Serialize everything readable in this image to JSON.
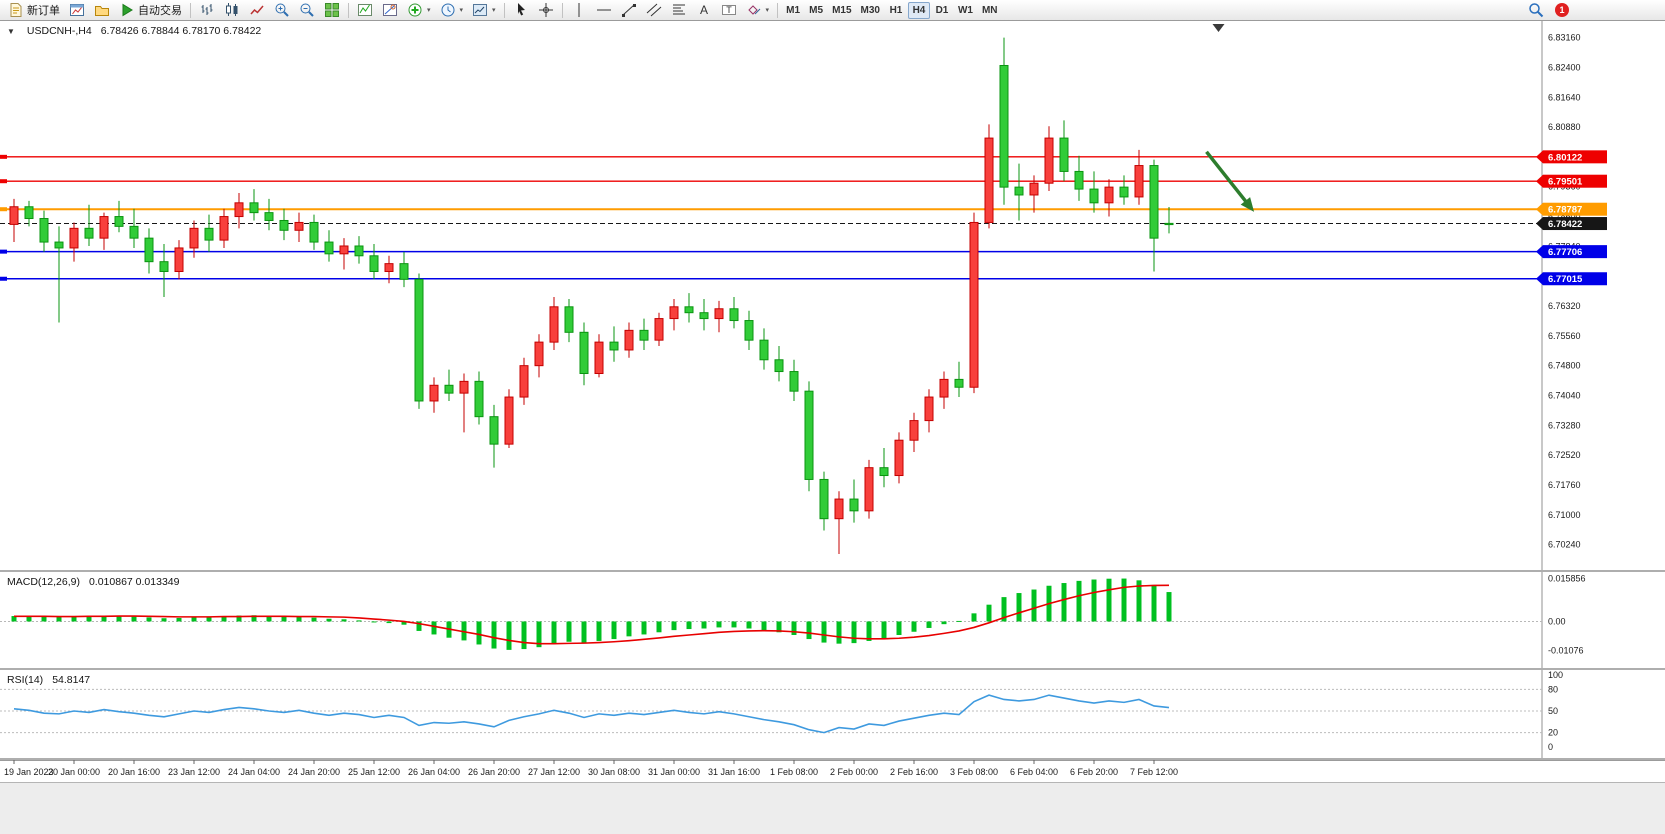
{
  "toolbar": {
    "buttons": [
      {
        "name": "new-order-button",
        "icon": "new-order-icon",
        "label": "新订单"
      },
      {
        "name": "charts-button",
        "icon": "chart-window-icon"
      },
      {
        "name": "profiles-button",
        "icon": "profiles-icon"
      },
      {
        "name": "auto-trading-button",
        "icon": "play-icon",
        "label": "自动交易"
      },
      {
        "sep": true
      },
      {
        "name": "bar-chart-button",
        "icon": "bars-icon"
      },
      {
        "name": "candle-chart-button",
        "icon": "candles-icon"
      },
      {
        "name": "line-chart-button",
        "icon": "line-icon"
      },
      {
        "name": "zoom-in-button",
        "icon": "zoom-in-icon"
      },
      {
        "name": "zoom-out-button",
        "icon": "zoom-out-icon"
      },
      {
        "name": "tile-windows-button",
        "icon": "tile-icon"
      },
      {
        "sep": true
      },
      {
        "name": "indicator-list-button",
        "icon": "indicator-list-icon"
      },
      {
        "name": "object-list-button",
        "icon": "object-list-icon"
      },
      {
        "name": "add-indicator-button",
        "icon": "add-indicator-icon",
        "caret": true
      },
      {
        "name": "period-button",
        "icon": "clock-icon",
        "caret": true
      },
      {
        "name": "template-button",
        "icon": "template-icon",
        "caret": true
      },
      {
        "sep": true
      },
      {
        "name": "cursor-button",
        "icon": "cursor-icon"
      },
      {
        "name": "crosshair-button",
        "icon": "crosshair-icon"
      },
      {
        "sep": true
      },
      {
        "name": "vertical-line-button",
        "icon": "vline-icon"
      },
      {
        "name": "horizontal-line-button",
        "icon": "hline-icon"
      },
      {
        "name": "trendline-button",
        "icon": "trendline-icon"
      },
      {
        "name": "channel-button",
        "icon": "channel-icon"
      },
      {
        "name": "fibonacci-button",
        "icon": "fibo-icon"
      },
      {
        "name": "text-button",
        "icon": "text-icon"
      },
      {
        "name": "label-button",
        "icon": "label-icon"
      },
      {
        "name": "shapes-button",
        "icon": "shapes-icon",
        "caret": true
      },
      {
        "sep": true
      }
    ],
    "timeframes": [
      "M1",
      "M5",
      "M15",
      "M30",
      "H1",
      "H4",
      "D1",
      "W1",
      "MN"
    ],
    "active_timeframe": "H4",
    "right_buttons": {
      "search_name": "search-button",
      "notification_count": "1"
    }
  },
  "chart": {
    "title_symbol": "USDCNH-,H4",
    "title_ohlc": "6.78426 6.78844 6.78170 6.78422"
  },
  "chart_data": {
    "type": "candlestick",
    "symbol": "USDCNH-",
    "timeframe": "H4",
    "ohlc_current": {
      "open": 6.78426,
      "high": 6.78844,
      "low": 6.7817,
      "close": 6.78422
    },
    "colors": {
      "up": "#f8403c",
      "up_border": "#c40000",
      "down": "#31cc38",
      "down_border": "#0a9410",
      "macd_hist": "#00c020",
      "macd_signal": "#e80000",
      "rsi": "#3e9adf",
      "line_red": "#ee0000",
      "line_orange": "#ff9c00",
      "line_blue": "#0000e8",
      "current": "#161616"
    },
    "y_axis": {
      "min": 6.7024,
      "max": 6.8316,
      "tick_step": 0.0076,
      "labels": [
        "6.83160",
        "6.82400",
        "6.81640",
        "6.80880",
        "6.80120",
        "6.79360",
        "6.78600",
        "6.77840",
        "6.77080",
        "6.76320",
        "6.75560",
        "6.74800",
        "6.74040",
        "6.73280",
        "6.72520",
        "6.71760",
        "6.71000",
        "6.70240"
      ]
    },
    "horizontal_lines": [
      {
        "price": 6.80122,
        "color": "#ee0000",
        "badge": "6.80122",
        "width": 1.3
      },
      {
        "price": 6.79501,
        "color": "#ee0000",
        "badge": "6.79501",
        "width": 1.3
      },
      {
        "price": 6.78787,
        "color": "#ff9c00",
        "badge": "6.78787",
        "width": 2
      },
      {
        "price": 6.77706,
        "color": "#0000e8",
        "badge": "6.77706",
        "width": 1.6
      },
      {
        "price": 6.77015,
        "color": "#0000e8",
        "badge": "6.77015",
        "width": 1.6
      }
    ],
    "current_price": {
      "price": 6.78422,
      "badge": "6.78422",
      "color": "#161616"
    },
    "candles": [
      [
        6.784,
        6.7905,
        6.7795,
        6.7885
      ],
      [
        6.7885,
        6.79,
        6.7835,
        6.7855
      ],
      [
        6.7855,
        6.7875,
        6.777,
        6.7795
      ],
      [
        6.7795,
        6.7835,
        6.759,
        6.778
      ],
      [
        6.778,
        6.7845,
        6.7745,
        6.783
      ],
      [
        6.783,
        6.789,
        6.7785,
        6.7805
      ],
      [
        6.7805,
        6.787,
        6.7775,
        6.786
      ],
      [
        6.786,
        6.79,
        6.782,
        6.7835
      ],
      [
        6.7835,
        6.788,
        6.778,
        6.7805
      ],
      [
        6.7805,
        6.783,
        6.7715,
        6.7745
      ],
      [
        6.7745,
        6.779,
        6.7655,
        6.772
      ],
      [
        6.772,
        6.78,
        6.77,
        6.778
      ],
      [
        6.778,
        6.785,
        6.7755,
        6.783
      ],
      [
        6.783,
        6.7865,
        6.777,
        6.78
      ],
      [
        6.78,
        6.788,
        6.778,
        6.786
      ],
      [
        6.786,
        6.792,
        6.783,
        6.7895
      ],
      [
        6.7895,
        6.793,
        6.785,
        6.787
      ],
      [
        6.787,
        6.7905,
        6.7825,
        6.785
      ],
      [
        6.785,
        6.788,
        6.78,
        6.7825
      ],
      [
        6.7825,
        6.787,
        6.7795,
        6.7845
      ],
      [
        6.7845,
        6.7865,
        6.7775,
        6.7795
      ],
      [
        6.7795,
        6.7825,
        6.7745,
        6.7765
      ],
      [
        6.7765,
        6.7805,
        6.7725,
        6.7785
      ],
      [
        6.7785,
        6.781,
        6.774,
        6.776
      ],
      [
        6.776,
        6.779,
        6.77,
        6.772
      ],
      [
        6.772,
        6.776,
        6.769,
        6.774
      ],
      [
        6.774,
        6.777,
        6.768,
        6.77
      ],
      [
        6.77,
        6.7715,
        6.737,
        6.739
      ],
      [
        6.739,
        6.745,
        6.736,
        6.743
      ],
      [
        6.743,
        6.747,
        6.739,
        6.741
      ],
      [
        6.741,
        6.746,
        6.731,
        6.744
      ],
      [
        6.744,
        6.7465,
        6.733,
        6.735
      ],
      [
        6.735,
        6.738,
        6.722,
        6.728
      ],
      [
        6.728,
        6.742,
        6.727,
        6.74
      ],
      [
        6.74,
        6.75,
        6.738,
        6.748
      ],
      [
        6.748,
        6.756,
        6.745,
        6.754
      ],
      [
        6.754,
        6.7655,
        6.752,
        6.763
      ],
      [
        6.763,
        6.765,
        6.754,
        6.7565
      ],
      [
        6.7565,
        6.759,
        6.743,
        6.746
      ],
      [
        6.746,
        6.756,
        6.745,
        6.754
      ],
      [
        6.754,
        6.758,
        6.749,
        6.752
      ],
      [
        6.752,
        6.759,
        6.75,
        6.757
      ],
      [
        6.757,
        6.76,
        6.752,
        6.7545
      ],
      [
        6.7545,
        6.7615,
        6.753,
        6.76
      ],
      [
        6.76,
        6.765,
        6.757,
        6.763
      ],
      [
        6.763,
        6.7665,
        6.759,
        6.7615
      ],
      [
        6.7615,
        6.765,
        6.757,
        6.76
      ],
      [
        6.76,
        6.7645,
        6.7565,
        6.7625
      ],
      [
        6.7625,
        6.7655,
        6.7575,
        6.7595
      ],
      [
        6.7595,
        6.762,
        6.752,
        6.7545
      ],
      [
        6.7545,
        6.7575,
        6.747,
        6.7495
      ],
      [
        6.7495,
        6.753,
        6.744,
        6.7465
      ],
      [
        6.7465,
        6.7495,
        6.739,
        6.7415
      ],
      [
        6.7415,
        6.744,
        6.716,
        6.719
      ],
      [
        6.719,
        6.721,
        6.706,
        6.709
      ],
      [
        6.709,
        6.716,
        6.7,
        6.714
      ],
      [
        6.714,
        6.719,
        6.708,
        6.711
      ],
      [
        6.711,
        6.724,
        6.709,
        6.722
      ],
      [
        6.722,
        6.727,
        6.717,
        6.72
      ],
      [
        6.72,
        6.731,
        6.718,
        6.729
      ],
      [
        6.729,
        6.736,
        6.726,
        6.734
      ],
      [
        6.734,
        6.742,
        6.731,
        6.74
      ],
      [
        6.74,
        6.7465,
        6.737,
        6.7445
      ],
      [
        6.7445,
        6.749,
        6.74,
        6.7425
      ],
      [
        6.7425,
        6.787,
        6.741,
        6.7845
      ],
      [
        6.7845,
        6.8095,
        6.783,
        6.806
      ],
      [
        6.8245,
        6.8316,
        6.789,
        6.7935
      ],
      [
        6.7935,
        6.7995,
        6.785,
        6.7915
      ],
      [
        6.7915,
        6.7965,
        6.787,
        6.7945
      ],
      [
        6.7945,
        6.809,
        6.7925,
        6.806
      ],
      [
        6.806,
        6.8105,
        6.795,
        6.7975
      ],
      [
        6.7975,
        6.8015,
        6.79,
        6.793
      ],
      [
        6.793,
        6.7975,
        6.787,
        6.7895
      ],
      [
        6.7895,
        6.7955,
        6.786,
        6.7935
      ],
      [
        6.7935,
        6.7965,
        6.789,
        6.791
      ],
      [
        6.791,
        6.803,
        6.789,
        6.799
      ],
      [
        6.799,
        6.8005,
        6.772,
        6.7805
      ],
      [
        6.78426,
        6.78844,
        6.7817,
        6.78422
      ]
    ],
    "time_label_every": 4,
    "time_labels": [
      "19 Jan 2023",
      "20 Jan 00:00",
      "20 Jan 16:00",
      "23 Jan 12:00",
      "24 Jan 04:00",
      "24 Jan 20:00",
      "25 Jan 12:00",
      "26 Jan 04:00",
      "26 Jan 20:00",
      "27 Jan 12:00",
      "30 Jan 08:00",
      "31 Jan 00:00",
      "31 Jan 16:00",
      "1 Feb 08:00",
      "2 Feb 00:00",
      "2 Feb 16:00",
      "3 Feb 08:00",
      "6 Feb 04:00",
      "6 Feb 20:00",
      "7 Feb 12:00"
    ],
    "trend_arrow": {
      "from_slot": 79.5,
      "from_price": 6.8025,
      "to_slot": 82.3,
      "to_price": 6.789,
      "color": "#2d7d2d"
    },
    "shift_marker_slot": 80.3,
    "indicators": {
      "macd": {
        "title": "MACD(12,26,9)",
        "values_text": "0.010867 0.013349",
        "range": [
          -0.0135,
          0.0168
        ],
        "axis_labels": [
          "0.015856",
          "0.00",
          "-0.01076"
        ],
        "histogram": [
          0.002,
          0.0022,
          0.0019,
          0.0018,
          0.002,
          0.0021,
          0.0022,
          0.002,
          0.0018,
          0.0015,
          0.0012,
          0.0013,
          0.0016,
          0.0017,
          0.0019,
          0.0022,
          0.0023,
          0.0021,
          0.0018,
          0.0017,
          0.0014,
          0.001,
          0.0008,
          0.0004,
          -0.0002,
          -0.0006,
          -0.0012,
          -0.0035,
          -0.0048,
          -0.006,
          -0.007,
          -0.0085,
          -0.01,
          -0.0105,
          -0.0102,
          -0.0095,
          -0.0082,
          -0.0075,
          -0.0078,
          -0.0072,
          -0.0065,
          -0.0055,
          -0.0048,
          -0.004,
          -0.0032,
          -0.0028,
          -0.0026,
          -0.0022,
          -0.0022,
          -0.0026,
          -0.0032,
          -0.004,
          -0.005,
          -0.0065,
          -0.0078,
          -0.0082,
          -0.008,
          -0.0072,
          -0.0062,
          -0.005,
          -0.0038,
          -0.0024,
          -0.001,
          0.0002,
          0.003,
          0.0062,
          0.009,
          0.0105,
          0.0118,
          0.0132,
          0.0142,
          0.015,
          0.0155,
          0.0158,
          0.015856,
          0.0152,
          0.0135,
          0.010867
        ],
        "signal": [
          0.0019,
          0.0019,
          0.0019,
          0.0018,
          0.0018,
          0.0019,
          0.0019,
          0.002,
          0.002,
          0.0019,
          0.0018,
          0.0017,
          0.0017,
          0.0017,
          0.0018,
          0.0018,
          0.0019,
          0.0019,
          0.0019,
          0.0018,
          0.0018,
          0.0017,
          0.0016,
          0.0013,
          0.0009,
          0.0005,
          0.0,
          -0.0008,
          -0.0018,
          -0.0028,
          -0.0038,
          -0.0048,
          -0.006,
          -0.007,
          -0.0078,
          -0.0082,
          -0.0082,
          -0.0081,
          -0.008,
          -0.0078,
          -0.0075,
          -0.0071,
          -0.0066,
          -0.0061,
          -0.0055,
          -0.005,
          -0.0045,
          -0.004,
          -0.0037,
          -0.0035,
          -0.0034,
          -0.0035,
          -0.0038,
          -0.0043,
          -0.005,
          -0.0057,
          -0.0062,
          -0.0064,
          -0.0064,
          -0.0062,
          -0.0058,
          -0.0052,
          -0.0044,
          -0.0035,
          -0.0022,
          -0.0005,
          0.0014,
          0.0032,
          0.0049,
          0.0066,
          0.0081,
          0.0095,
          0.0107,
          0.0117,
          0.0126,
          0.0131,
          0.0133,
          0.013349
        ]
      },
      "rsi": {
        "title": "RSI(14)",
        "value_text": "54.8147",
        "range": [
          0,
          100
        ],
        "levels": [
          80,
          50,
          20
        ],
        "axis_labels": [
          "100",
          "80",
          "50",
          "20",
          "0"
        ],
        "values": [
          53,
          51,
          47,
          46,
          50,
          48,
          52,
          49,
          47,
          44,
          42,
          46,
          50,
          48,
          52,
          55,
          53,
          50,
          48,
          51,
          47,
          44,
          47,
          45,
          41,
          44,
          41,
          30,
          34,
          33,
          35,
          32,
          28,
          37,
          42,
          46,
          51,
          47,
          41,
          46,
          44,
          47,
          45,
          48,
          51,
          48,
          46,
          49,
          46,
          42,
          38,
          35,
          31,
          24,
          20,
          27,
          25,
          32,
          30,
          36,
          40,
          44,
          47,
          45,
          63,
          72,
          66,
          64,
          66,
          72,
          68,
          64,
          61,
          64,
          62,
          66,
          57,
          54.8
        ]
      }
    }
  }
}
